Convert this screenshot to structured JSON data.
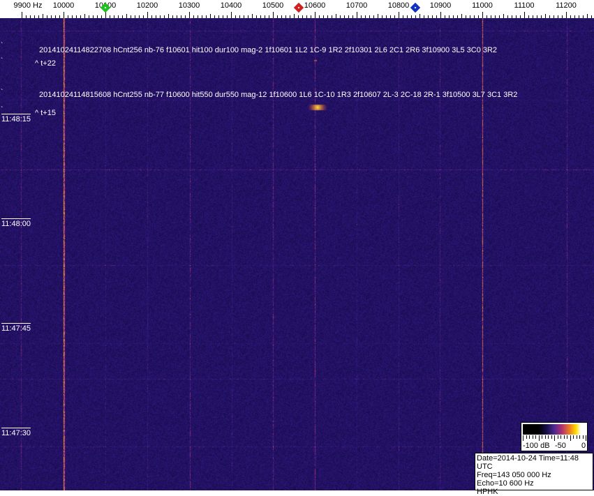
{
  "axis": {
    "unit_label": "9900 Hz",
    "labels": [
      "10000",
      "10100",
      "10200",
      "10300",
      "10400",
      "10500",
      "10600",
      "10700",
      "10800",
      "10900",
      "11000",
      "11100",
      "11200"
    ],
    "markers": [
      {
        "name": "green",
        "freq_hz": 10100,
        "color": "#20c020"
      },
      {
        "name": "red",
        "freq_hz": 10562,
        "color": "#d02020"
      },
      {
        "name": "blue",
        "freq_hz": 10840,
        "color": "#1030c0"
      }
    ]
  },
  "annotations": [
    {
      "text": "20141024114822708 hCnt256 nb-76 f10601 hit100 dur100 mag-2 1f10601 1L2 1C-9 1R2 2f10301 2L6 2C1 2R6 3f10900 3L5 3C0 3R2",
      "offset": "^ t+22"
    },
    {
      "text": "20141024114815608 hCnt255 nb-77 f10600 hit550 dur550 mag-12 1f10600 1L6 1C-10 1R3 2f10607 2L-3 2C-18 2R-1 3f10500 3L7 3C1 3R2",
      "offset": "^ t+15"
    }
  ],
  "time_labels": [
    "11:48:15",
    "11:48:00",
    "11:47:45",
    "11:47:30"
  ],
  "colorscale": {
    "labels": [
      "-100 dB",
      "-50",
      "0"
    ]
  },
  "info": {
    "date_time": "Date=2014-10-24 Time=11:48 UTC",
    "freq": "Freq=143 050 000 Hz",
    "echo": "Echo=10 600 Hz",
    "station": "HPHK"
  },
  "colors": {
    "background": "#2c1a78",
    "line": "#c04080",
    "hot": "#f0a030"
  }
}
